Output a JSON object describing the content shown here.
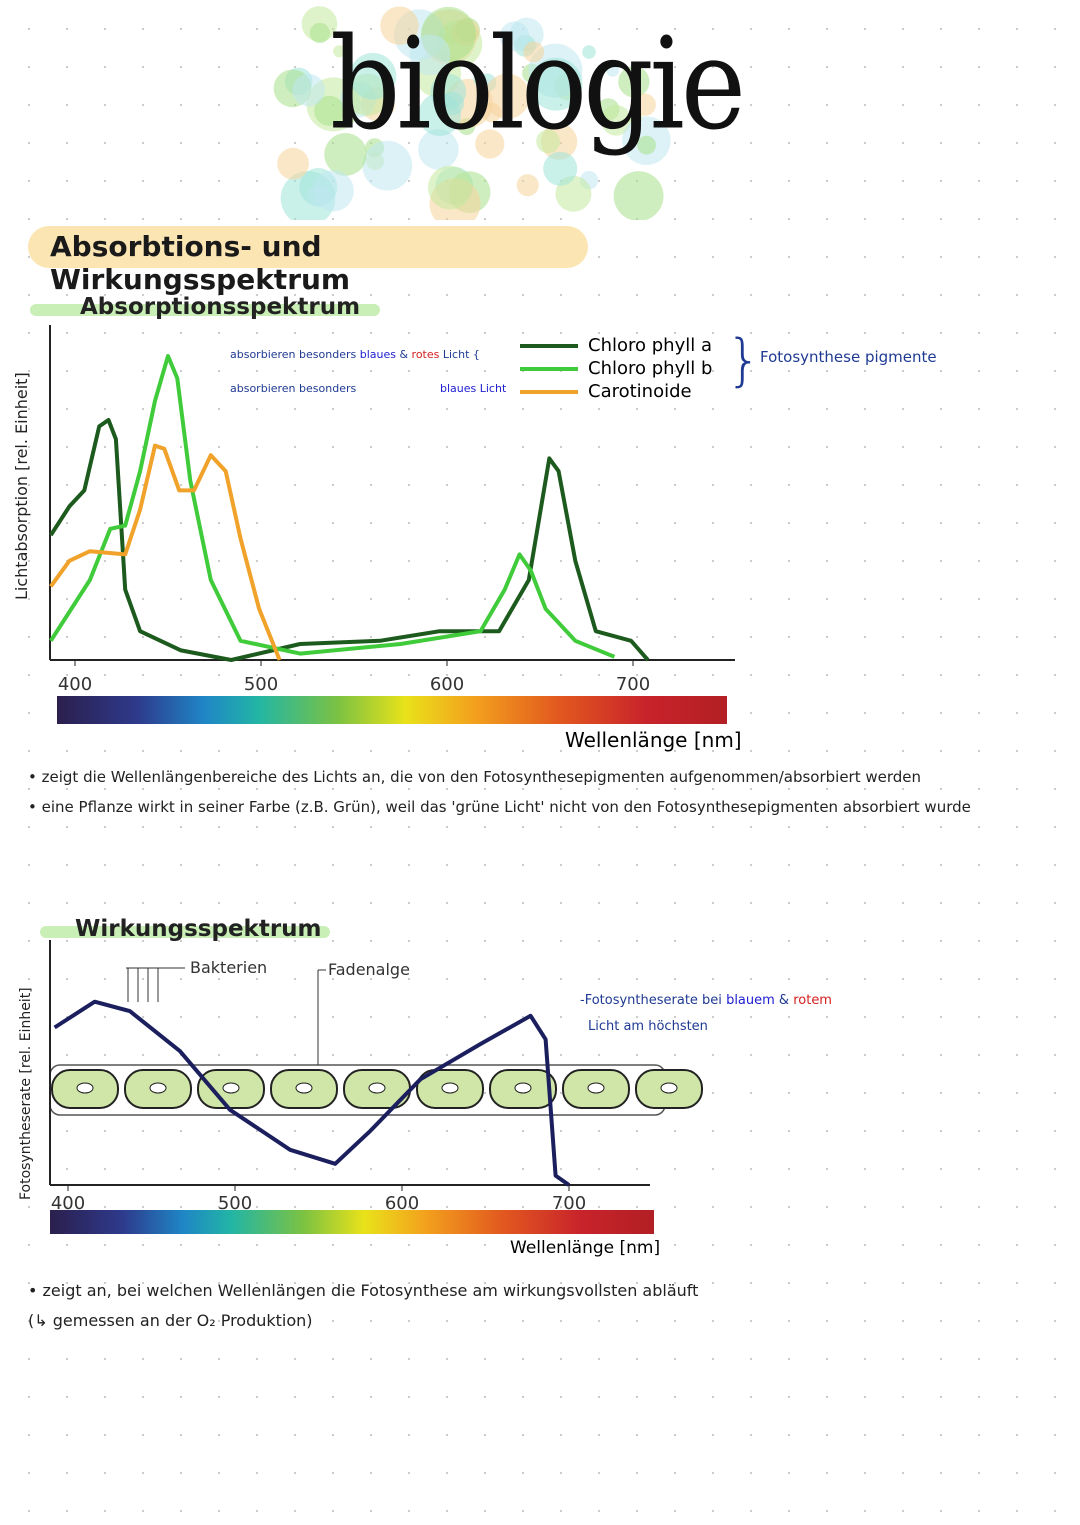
{
  "title": "biologie",
  "heading": "Absorbtions- und Wirkungsspektrum",
  "colors": {
    "chl_a": "#1d5a1e",
    "chl_b": "#3fcb3a",
    "carotinoide": "#f0a22a",
    "action": "#1b1f5e",
    "blue": "#1f3a93",
    "red": "#d42020"
  },
  "absorption": {
    "subtitle": "Absorptionsspektrum",
    "note1": {
      "a": "absorbieren besonders ",
      "b": "blaues",
      "c": " & ",
      "d": "rotes",
      "e": " Licht"
    },
    "note2": {
      "a": "absorbieren besonders",
      "b": "blaues Licht"
    },
    "group_label": "Fotosynthese pigmente",
    "bullets": [
      "zeigt die Wellenlängenbereiche des Lichts an, die von den Fotosynthesepigmenten aufgenommen/absorbiert werden",
      "eine Pflanze wirkt in seiner Farbe (z.B. Grün), weil das 'grüne Licht' nicht von den Fotosynthesepigmenten absorbiert wurde"
    ]
  },
  "action": {
    "subtitle": "Wirkungsspektrum",
    "label_bacteria": "Bakterien",
    "label_alga": "Fadenalge",
    "note": {
      "a": "-Fotosyntheserate bei ",
      "b": "blauem",
      "c": " & ",
      "d": "rotem",
      "e": "Licht am höchsten"
    },
    "bullet": "zeigt an, bei welchen Wellenlängen die Fotosynthese am wirkungsvollsten abläuft",
    "bullet2": "(↳ gemessen an der O₂ Produktion)"
  },
  "chart_data": [
    {
      "type": "line",
      "xlabel": "Wellenlänge [nm]",
      "ylabel": "Lichtabsorption [rel. Einheit]",
      "xticks": [
        400,
        500,
        600,
        700
      ],
      "xlim": [
        387,
        750
      ],
      "ylim": [
        0,
        100
      ],
      "series": [
        {
          "name": "Chloro phyll a",
          "x": [
            387,
            397,
            405,
            413,
            418,
            422,
            427,
            435,
            457,
            484,
            521,
            564,
            596,
            628,
            644,
            655,
            660,
            669,
            680,
            699,
            708
          ],
          "y": [
            39,
            48,
            53,
            73,
            75,
            69,
            22,
            9,
            3,
            0,
            5,
            6,
            9,
            9,
            25,
            63,
            59,
            31,
            9,
            6,
            0
          ]
        },
        {
          "name": "Chloro phyll b",
          "x": [
            387,
            408,
            419,
            427,
            435,
            443,
            450,
            455,
            462,
            473,
            489,
            521,
            575,
            618,
            631,
            639,
            645,
            653,
            669,
            690
          ],
          "y": [
            6,
            25,
            41,
            42,
            59,
            81,
            95,
            88,
            56,
            25,
            6,
            2,
            5,
            9,
            22,
            33,
            28,
            16,
            6,
            1
          ]
        },
        {
          "name": "Carotinoide",
          "x": [
            387,
            397,
            408,
            427,
            435,
            443,
            448,
            456,
            464,
            473,
            481,
            489,
            499,
            510
          ],
          "y": [
            23,
            31,
            34,
            33,
            47,
            67,
            66,
            53,
            53,
            64,
            59,
            38,
            16,
            0
          ]
        }
      ]
    },
    {
      "type": "line",
      "xlabel": "Wellenlänge [nm]",
      "ylabel": "Fotosyntheserate [rel. Einheit]",
      "xticks": [
        400,
        500,
        600,
        700
      ],
      "xlim": [
        392,
        750
      ],
      "ylim": [
        0,
        100
      ],
      "series": [
        {
          "x": [
            392,
            416,
            437,
            467,
            497,
            533,
            560,
            581,
            611,
            647,
            677,
            686,
            692,
            700
          ],
          "y": [
            67,
            78,
            74,
            57,
            32,
            15,
            9,
            23,
            45,
            60,
            72,
            62,
            4,
            0
          ]
        }
      ]
    }
  ]
}
